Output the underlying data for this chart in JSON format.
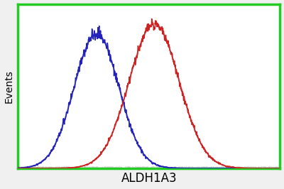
{
  "title": "",
  "xlabel": "ALDH1A3",
  "ylabel": "Events",
  "background_color": "#f0f0f0",
  "plot_background": "#ffffff",
  "border_color": "#22cc22",
  "blue_color": "#2222bb",
  "red_color": "#cc2222",
  "blue_mean": 0.3,
  "blue_std": 0.085,
  "blue_amplitude": 0.82,
  "red_mean": 0.52,
  "red_std": 0.095,
  "red_amplitude": 0.88,
  "xmin": 0.0,
  "xmax": 1.0,
  "ymin": 0,
  "ymax": 1.0,
  "xlabel_fontsize": 12,
  "ylabel_fontsize": 10,
  "linewidth": 1.3,
  "border_linewidth": 2.5
}
